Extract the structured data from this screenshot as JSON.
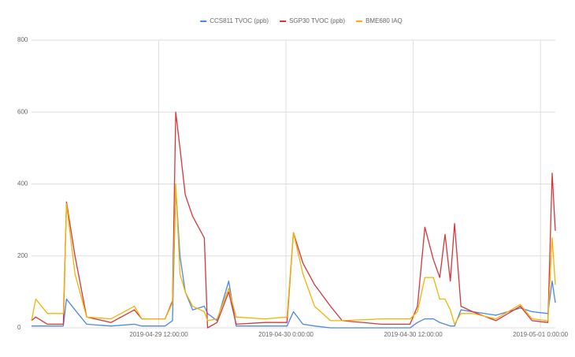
{
  "chart_data": {
    "type": "line",
    "legend": "top",
    "grid": true,
    "x": [
      "2019-04-29 0:00:00",
      "2019-04-29 0:24:00",
      "2019-04-29 1:30:00",
      "2019-04-29 3:00:00",
      "2019-04-29 3:18:00",
      "2019-04-29 4:06:00",
      "2019-04-29 5:12:00",
      "2019-04-29 7:30:00",
      "2019-04-29 9:42:00",
      "2019-04-29 10:24:00",
      "2019-04-29 12:36:00",
      "2019-04-29 13:18:00",
      "2019-04-29 13:36:00",
      "2019-04-29 14:00:00",
      "2019-04-29 14:30:00",
      "2019-04-29 15:12:00",
      "2019-04-29 16:18:00",
      "2019-04-29 16:36:00",
      "2019-04-29 17:30:00",
      "2019-04-29 18:36:00",
      "2019-04-29 19:18:00",
      "2019-04-29 22:00:00",
      "2019-04-30 0:06:00",
      "2019-04-30 0:42:00",
      "2019-04-30 1:36:00",
      "2019-04-30 2:42:00",
      "2019-04-30 4:12:00",
      "2019-04-30 5:18:00",
      "2019-04-30 9:00:00",
      "2019-04-30 11:42:00",
      "2019-04-30 12:24:00",
      "2019-04-30 13:06:00",
      "2019-04-30 13:54:00",
      "2019-04-30 14:30:00",
      "2019-04-30 15:00:00",
      "2019-04-30 15:30:00",
      "2019-04-30 15:54:00",
      "2019-04-30 16:30:00",
      "2019-04-30 17:36:00",
      "2019-04-30 19:48:00",
      "2019-04-30 22:06:00",
      "2019-04-30 23:12:00",
      "2019-05-01 0:42:00",
      "2019-05-01 1:06:00",
      "2019-05-01 1:24:00"
    ],
    "series": [
      {
        "name": "CCS811 TVOC (ppb)",
        "color": "#4a86e8",
        "values": [
          5,
          5,
          5,
          5,
          80,
          50,
          10,
          5,
          10,
          5,
          5,
          20,
          390,
          200,
          100,
          50,
          60,
          40,
          20,
          130,
          5,
          5,
          5,
          45,
          10,
          5,
          0,
          0,
          0,
          0,
          15,
          25,
          25,
          15,
          10,
          5,
          5,
          50,
          45,
          35,
          55,
          45,
          40,
          130,
          70
        ]
      },
      {
        "name": "SGP30 TVOC (ppb)",
        "color": "#d2373c",
        "values": [
          20,
          30,
          10,
          10,
          350,
          200,
          30,
          15,
          50,
          25,
          25,
          75,
          600,
          500,
          370,
          310,
          250,
          0,
          15,
          100,
          10,
          15,
          15,
          265,
          180,
          120,
          60,
          20,
          10,
          10,
          60,
          280,
          190,
          140,
          260,
          130,
          290,
          60,
          45,
          20,
          60,
          20,
          15,
          430,
          270
        ]
      },
      {
        "name": "BME680 IAQ",
        "color": "#f2b400",
        "values": [
          20,
          80,
          40,
          40,
          345,
          150,
          30,
          25,
          60,
          25,
          25,
          70,
          400,
          150,
          100,
          60,
          45,
          20,
          25,
          110,
          30,
          25,
          30,
          265,
          150,
          60,
          20,
          20,
          25,
          25,
          45,
          140,
          140,
          80,
          80,
          50,
          10,
          40,
          40,
          25,
          65,
          25,
          20,
          250,
          120
        ]
      }
    ],
    "xlim": [
      "2019-04-29 0:00:00",
      "2019-05-01 1:24:00"
    ],
    "xticks": [
      "2019-04-29 12:00:00",
      "2019-04-30 0:00:00",
      "2019-04-30 12:00:00",
      "2019-05-01 0:00:00"
    ],
    "ylim": [
      0,
      800
    ],
    "yticks": [
      0,
      200,
      400,
      600,
      800
    ]
  }
}
